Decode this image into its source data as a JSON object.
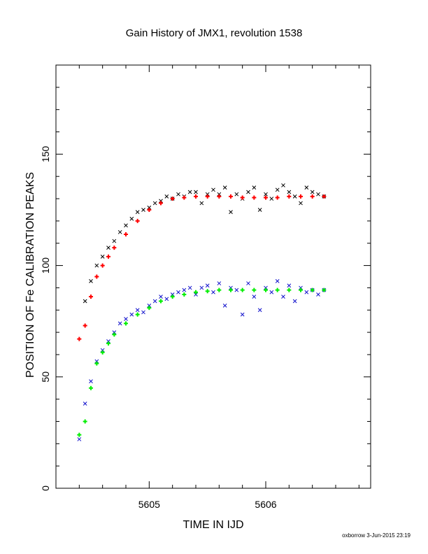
{
  "chart_data": {
    "type": "scatter",
    "title": "Gain History of JMX1, revolution 1538",
    "xlabel": "TIME IN IJD",
    "ylabel": "POSITION OF Fe CALIBRATION PEAKS",
    "xlim": [
      5604.2,
      5606.9
    ],
    "ylim": [
      0,
      190
    ],
    "x_ticks": [
      5605,
      5606
    ],
    "y_ticks": [
      0,
      50,
      100,
      150
    ],
    "grid": false,
    "legend": "none",
    "footer": "oxborrow  3-Jun-2015 23:19",
    "series": [
      {
        "role": "measured peak (upper)",
        "marker": "x",
        "color": "#000000",
        "x": [
          5604.45,
          5604.5,
          5604.55,
          5604.6,
          5604.65,
          5604.7,
          5604.75,
          5604.8,
          5604.85,
          5604.9,
          5604.95,
          5605.0,
          5605.05,
          5605.1,
          5605.15,
          5605.2,
          5605.25,
          5605.3,
          5605.35,
          5605.4,
          5605.45,
          5605.5,
          5605.55,
          5605.6,
          5605.65,
          5605.7,
          5605.75,
          5605.8,
          5605.85,
          5605.9,
          5605.95,
          5606.0,
          5606.05,
          5606.1,
          5606.15,
          5606.2,
          5606.25,
          5606.3,
          5606.35,
          5606.4,
          5606.45,
          5606.5
        ],
        "y": [
          84,
          93,
          100,
          104,
          108,
          111,
          115,
          118,
          121,
          124,
          125,
          126,
          128,
          129,
          131,
          130,
          132,
          131,
          133,
          133,
          128,
          132,
          134,
          132,
          135,
          124,
          132,
          130,
          133,
          135,
          125,
          132,
          130,
          134,
          136,
          133,
          131,
          128,
          135,
          133,
          132,
          131
        ]
      },
      {
        "role": "measured peak (lower)",
        "marker": "x",
        "color": "#1111cc",
        "x": [
          5604.4,
          5604.45,
          5604.5,
          5604.55,
          5604.6,
          5604.65,
          5604.7,
          5604.75,
          5604.8,
          5604.85,
          5604.9,
          5604.95,
          5605.0,
          5605.05,
          5605.1,
          5605.15,
          5605.2,
          5605.25,
          5605.3,
          5605.35,
          5605.4,
          5605.45,
          5605.5,
          5605.55,
          5605.6,
          5605.65,
          5605.7,
          5605.75,
          5605.8,
          5605.85,
          5605.9,
          5605.95,
          5606.0,
          5606.05,
          5606.1,
          5606.15,
          5606.2,
          5606.25,
          5606.3,
          5606.35,
          5606.4,
          5606.45,
          5606.5
        ],
        "y": [
          22,
          38,
          48,
          57,
          62,
          66,
          70,
          74,
          76,
          78,
          80,
          79,
          82,
          84,
          86,
          85,
          87,
          88,
          89,
          90,
          87,
          90,
          91,
          88,
          92,
          82,
          90,
          89,
          78,
          92,
          86,
          80,
          90,
          88,
          93,
          86,
          91,
          84,
          90,
          88,
          89,
          87,
          89
        ]
      },
      {
        "role": "gain fit (upper)",
        "marker": "+",
        "color": "#ff0000",
        "x": [
          5604.4,
          5604.45,
          5604.5,
          5604.55,
          5604.6,
          5604.65,
          5604.7,
          5604.8,
          5604.9,
          5605.0,
          5605.1,
          5605.2,
          5605.3,
          5605.4,
          5605.5,
          5605.6,
          5605.7,
          5605.8,
          5605.9,
          5606.0,
          5606.1,
          5606.2,
          5606.3,
          5606.4,
          5606.5
        ],
        "y": [
          67,
          73,
          86,
          95,
          100,
          104,
          108,
          114,
          120,
          125,
          128,
          130,
          130.5,
          131,
          131,
          131,
          131,
          130.5,
          130.5,
          130.5,
          130.5,
          131,
          131,
          131,
          131
        ]
      },
      {
        "role": "gain fit (lower)",
        "marker": "+",
        "color": "#00ee00",
        "x": [
          5604.4,
          5604.45,
          5604.5,
          5604.55,
          5604.6,
          5604.65,
          5604.7,
          5604.8,
          5604.9,
          5605.0,
          5605.1,
          5605.2,
          5605.3,
          5605.4,
          5605.5,
          5605.6,
          5605.7,
          5605.8,
          5605.9,
          5606.0,
          5606.1,
          5606.2,
          5606.3,
          5606.4,
          5606.5
        ],
        "y": [
          24,
          30,
          45,
          56,
          61,
          65,
          69,
          74,
          78,
          81,
          84,
          86,
          87,
          88,
          88.5,
          89,
          89,
          89,
          89,
          89,
          89,
          89,
          89,
          89,
          89
        ]
      }
    ]
  }
}
